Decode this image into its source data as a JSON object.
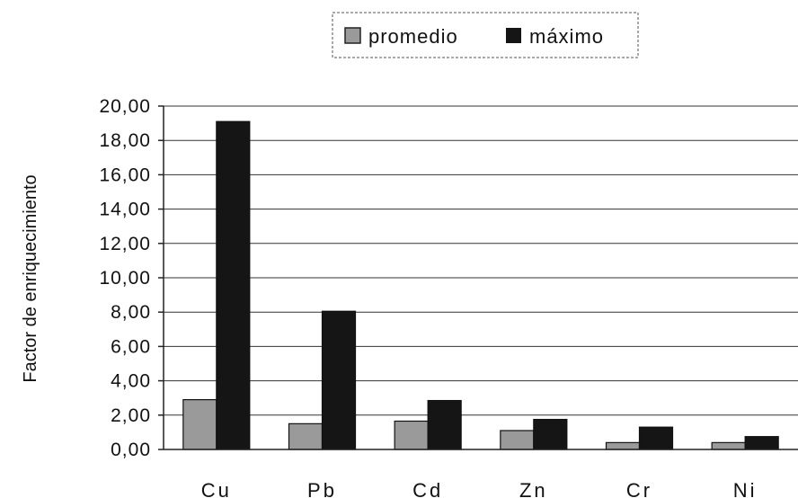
{
  "chart_data": {
    "type": "bar",
    "ylabel": "Factor de enriquecimiento",
    "xlabel": "",
    "categories": [
      "Cu",
      "Pb",
      "Cd",
      "Zn",
      "Cr",
      "Ni"
    ],
    "series": [
      {
        "name": "promedio",
        "values": [
          2.9,
          1.5,
          1.65,
          1.1,
          0.4,
          0.4
        ],
        "color": "#9a9a9a"
      },
      {
        "name": "máximo",
        "values": [
          19.1,
          8.05,
          2.85,
          1.75,
          1.3,
          0.75
        ],
        "color": "#151515"
      }
    ],
    "ylim": [
      0,
      20
    ],
    "yticks": [
      "0,00",
      "2,00",
      "4,00",
      "6,00",
      "8,00",
      "10,00",
      "12,00",
      "14,00",
      "16,00",
      "18,00",
      "20,00"
    ],
    "grid": true,
    "legend_position": "top-center"
  }
}
